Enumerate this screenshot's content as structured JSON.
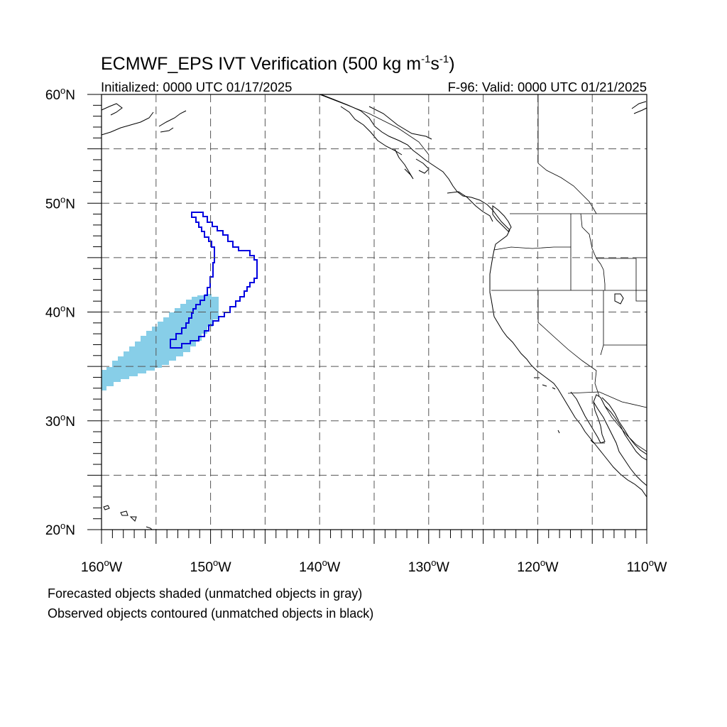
{
  "title": {
    "main": "ECMWF_EPS IVT Verification (500 kg m",
    "sup1": "-1",
    "mid": "s",
    "sup2": "-1",
    "end": ")"
  },
  "initialized": "Initialized: 0000 UTC 01/17/2025",
  "valid": "F-96: Valid: 0000 UTC 01/21/2025",
  "lat_labels": [
    {
      "deg": "60",
      "hemi": "N",
      "lat": 60
    },
    {
      "deg": "50",
      "hemi": "N",
      "lat": 50
    },
    {
      "deg": "40",
      "hemi": "N",
      "lat": 40
    },
    {
      "deg": "30",
      "hemi": "N",
      "lat": 30
    },
    {
      "deg": "20",
      "hemi": "N",
      "lat": 20
    }
  ],
  "lon_labels": [
    {
      "deg": "160",
      "hemi": "W",
      "lon": -160
    },
    {
      "deg": "150",
      "hemi": "W",
      "lon": -150
    },
    {
      "deg": "140",
      "hemi": "W",
      "lon": -140
    },
    {
      "deg": "130",
      "hemi": "W",
      "lon": -130
    },
    {
      "deg": "120",
      "hemi": "W",
      "lon": -120
    },
    {
      "deg": "110",
      "hemi": "W",
      "lon": -110
    }
  ],
  "map": {
    "lon_range": [
      -160,
      -110
    ],
    "lat_range": [
      20,
      60
    ],
    "grid_spacing_deg": 5,
    "forecast_fill_color": "#87CEE8",
    "observed_contour_color": "#0000E0"
  },
  "notes": {
    "line1": "Forecasted objects shaded (unmatched objects in gray)",
    "line2": "Observed objects contoured (unmatched objects in black)"
  }
}
